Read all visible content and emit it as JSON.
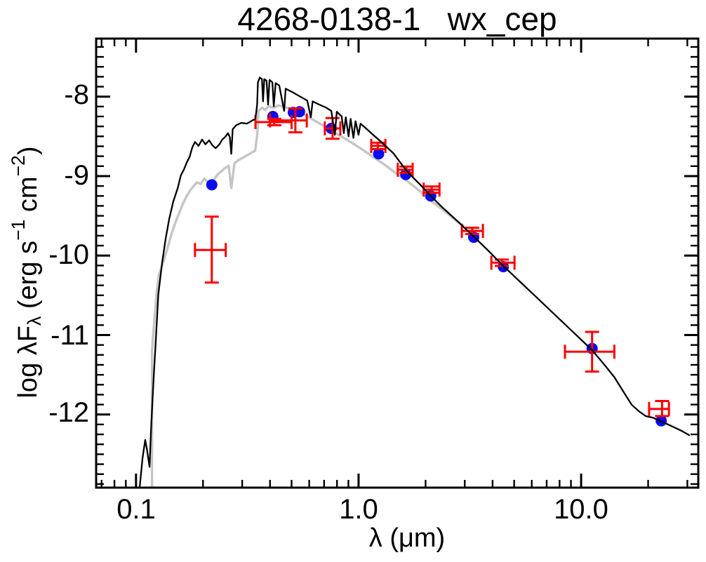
{
  "title": "4268-0138-1   wx_cep",
  "labels": {
    "x": "λ (μm)",
    "y_parts": [
      {
        "t": "log λF"
      },
      {
        "t": "λ"
      },
      {
        "t": " (erg s"
      },
      {
        "t": "−1"
      },
      {
        "t": " cm"
      },
      {
        "t": "−2"
      },
      {
        "t": ")"
      }
    ]
  },
  "colors": {
    "frame": "#000000",
    "black_curve": "#000000",
    "gray_curve": "#c6c6c6",
    "blue_points": "#0a0aee",
    "red_errorbars": "#ff0000"
  },
  "chart_data": {
    "type": "scatter",
    "title": "4268-0138-1   wx_cep",
    "xlabel": "λ (μm)",
    "ylabel": "log λF_λ (erg s^-1 cm^-2)",
    "x_scale": "log",
    "y_scale": "linear",
    "xlim": [
      0.0662,
      33.6
    ],
    "ylim": [
      -12.92,
      -7.27
    ],
    "grid": false,
    "legend": false,
    "x_major_ticks": [
      {
        "value": 0.1,
        "label": "0.1"
      },
      {
        "value": 1.0,
        "label": "1.0"
      },
      {
        "value": 10.0,
        "label": "10.0"
      }
    ],
    "y_major_ticks": [
      {
        "value": -8,
        "label": "-8"
      },
      {
        "value": -9,
        "label": "-9"
      },
      {
        "value": -10,
        "label": "-10"
      },
      {
        "value": -11,
        "label": "-11"
      },
      {
        "value": -12,
        "label": "-12"
      }
    ],
    "y_minor_step": 0.125,
    "series": [
      {
        "name": "model-spectrum-gray",
        "type": "line",
        "color": "#c6c6c6",
        "width": 3.5,
        "points": [
          [
            0.118,
            -12.9
          ],
          [
            0.118,
            -11.2
          ],
          [
            0.121,
            -10.8
          ],
          [
            0.124,
            -10.45
          ],
          [
            0.127,
            -10.24
          ],
          [
            0.133,
            -10.07
          ],
          [
            0.139,
            -9.89
          ],
          [
            0.145,
            -9.71
          ],
          [
            0.151,
            -9.57
          ],
          [
            0.157,
            -9.45
          ],
          [
            0.163,
            -9.34
          ],
          [
            0.169,
            -9.25
          ],
          [
            0.175,
            -9.18
          ],
          [
            0.181,
            -9.13
          ],
          [
            0.188,
            -9.08
          ],
          [
            0.195,
            -9.1
          ],
          [
            0.203,
            -9.03
          ],
          [
            0.21,
            -9.08
          ],
          [
            0.218,
            -9.09
          ],
          [
            0.226,
            -9.03
          ],
          [
            0.234,
            -8.97
          ],
          [
            0.242,
            -8.94
          ],
          [
            0.251,
            -8.9
          ],
          [
            0.261,
            -8.87
          ],
          [
            0.268,
            -9.15
          ],
          [
            0.277,
            -8.84
          ],
          [
            0.288,
            -8.8
          ],
          [
            0.306,
            -8.76
          ],
          [
            0.324,
            -8.72
          ],
          [
            0.343,
            -8.68
          ],
          [
            0.351,
            -8.46
          ],
          [
            0.355,
            -8.18
          ],
          [
            0.369,
            -8.14
          ],
          [
            0.38,
            -8.17
          ],
          [
            0.394,
            -8.12
          ],
          [
            0.414,
            -8.14
          ],
          [
            0.437,
            -8.11
          ],
          [
            0.463,
            -8.13
          ],
          [
            0.49,
            -8.15
          ],
          [
            0.52,
            -8.18
          ],
          [
            0.555,
            -8.21
          ],
          [
            0.597,
            -8.26
          ],
          [
            0.642,
            -8.31
          ],
          [
            0.69,
            -8.36
          ],
          [
            0.742,
            -8.41
          ],
          [
            0.798,
            -8.47
          ],
          [
            0.871,
            -8.53
          ],
          [
            0.957,
            -8.6
          ],
          [
            1.07,
            -8.69
          ],
          [
            1.19,
            -8.78
          ],
          [
            1.33,
            -8.87
          ],
          [
            1.48,
            -8.97
          ],
          [
            1.65,
            -9.06
          ],
          [
            1.87,
            -9.18
          ],
          [
            2.11,
            -9.31
          ],
          [
            2.41,
            -9.43
          ],
          [
            2.74,
            -9.56
          ],
          [
            2.95,
            -9.62
          ]
        ]
      },
      {
        "name": "photometry-model-dots",
        "type": "scatter",
        "color": "#0a0aee",
        "radius": 8,
        "points": [
          [
            0.219,
            -9.11
          ],
          [
            0.412,
            -8.25
          ],
          [
            0.509,
            -8.2
          ],
          [
            0.543,
            -8.19
          ],
          [
            0.753,
            -8.4
          ],
          [
            1.23,
            -8.72
          ],
          [
            1.63,
            -8.98
          ],
          [
            2.11,
            -9.25
          ],
          [
            3.29,
            -9.77
          ],
          [
            4.47,
            -10.14
          ],
          [
            11.2,
            -11.17
          ],
          [
            22.9,
            -12.08
          ]
        ]
      },
      {
        "name": "photometry-observed-errorbars",
        "type": "errorbar",
        "color": "#ff0000",
        "width": 3,
        "cap": 10,
        "points": [
          {
            "x": 0.219,
            "y": -9.93,
            "xlo": 0.184,
            "xhi": 0.253,
            "ylo": -10.34,
            "yhi": -9.51
          },
          {
            "x": 0.418,
            "y": -8.32,
            "xlo": 0.344,
            "xhi": 0.5,
            "ylo": -8.36,
            "yhi": -8.28
          },
          {
            "x": 0.52,
            "y": -8.3,
            "xlo": 0.4,
            "xhi": 0.585,
            "ylo": -8.45,
            "yhi": -8.15
          },
          {
            "x": 0.764,
            "y": -8.4,
            "xlo": 0.705,
            "xhi": 0.828,
            "ylo": -8.53,
            "yhi": -8.27
          },
          {
            "x": 1.22,
            "y": -8.62,
            "xlo": 1.14,
            "xhi": 1.32,
            "ylo": -8.66,
            "yhi": -8.58
          },
          {
            "x": 1.64,
            "y": -8.92,
            "xlo": 1.5,
            "xhi": 1.75,
            "ylo": -8.96,
            "yhi": -8.88
          },
          {
            "x": 2.13,
            "y": -9.17,
            "xlo": 1.96,
            "xhi": 2.31,
            "ylo": -9.21,
            "yhi": -9.13
          },
          {
            "x": 3.24,
            "y": -9.69,
            "xlo": 2.91,
            "xhi": 3.62,
            "ylo": -9.73,
            "yhi": -9.65
          },
          {
            "x": 4.4,
            "y": -10.09,
            "xlo": 3.95,
            "xhi": 5.02,
            "ylo": -10.13,
            "yhi": -10.05
          },
          {
            "x": 11.2,
            "y": -11.21,
            "xlo": 8.46,
            "xhi": 14.1,
            "ylo": -11.46,
            "yhi": -10.96
          },
          {
            "x": 23.1,
            "y": -11.93,
            "xlo": 20.2,
            "xhi": 24.8,
            "ylo": -12.02,
            "yhi": -11.83
          }
        ]
      },
      {
        "name": "model-spectrum-black",
        "type": "line",
        "color": "#000000",
        "width": 2.3,
        "points": [
          [
            0.104,
            -12.9
          ],
          [
            0.107,
            -12.55
          ],
          [
            0.11,
            -12.32
          ],
          [
            0.112,
            -12.44
          ],
          [
            0.115,
            -12.66
          ],
          [
            0.117,
            -12.15
          ],
          [
            0.12,
            -11.55
          ],
          [
            0.123,
            -11.02
          ],
          [
            0.126,
            -10.49
          ],
          [
            0.131,
            -10.09
          ],
          [
            0.136,
            -9.78
          ],
          [
            0.141,
            -9.54
          ],
          [
            0.147,
            -9.32
          ],
          [
            0.154,
            -9.15
          ],
          [
            0.159,
            -8.99
          ],
          [
            0.164,
            -8.92
          ],
          [
            0.169,
            -8.83
          ],
          [
            0.174,
            -8.76
          ],
          [
            0.179,
            -8.64
          ],
          [
            0.184,
            -8.57
          ],
          [
            0.191,
            -8.62
          ],
          [
            0.198,
            -8.54
          ],
          [
            0.205,
            -8.6
          ],
          [
            0.213,
            -8.55
          ],
          [
            0.22,
            -8.61
          ],
          [
            0.228,
            -8.65
          ],
          [
            0.237,
            -8.6
          ],
          [
            0.244,
            -8.54
          ],
          [
            0.251,
            -8.51
          ],
          [
            0.259,
            -8.46
          ],
          [
            0.264,
            -8.51
          ],
          [
            0.268,
            -8.72
          ],
          [
            0.272,
            -8.41
          ],
          [
            0.282,
            -8.36
          ],
          [
            0.297,
            -8.33
          ],
          [
            0.315,
            -8.34
          ],
          [
            0.333,
            -8.3
          ],
          [
            0.344,
            -8.28
          ],
          [
            0.35,
            -8.1
          ],
          [
            0.353,
            -7.82
          ],
          [
            0.36,
            -7.76
          ],
          [
            0.368,
            -7.78
          ],
          [
            0.372,
            -8.06
          ],
          [
            0.377,
            -7.78
          ],
          [
            0.386,
            -7.8
          ],
          [
            0.392,
            -8.1
          ],
          [
            0.398,
            -7.79
          ],
          [
            0.41,
            -7.82
          ],
          [
            0.416,
            -8.12
          ],
          [
            0.424,
            -7.83
          ],
          [
            0.44,
            -7.86
          ],
          [
            0.463,
            -8.18
          ],
          [
            0.47,
            -7.9
          ],
          [
            0.509,
            -7.95
          ],
          [
            0.547,
            -8.0
          ],
          [
            0.588,
            -8.05
          ],
          [
            0.61,
            -8.26
          ],
          [
            0.622,
            -8.06
          ],
          [
            0.665,
            -8.1
          ],
          [
            0.716,
            -8.14
          ],
          [
            0.754,
            -8.18
          ],
          [
            0.782,
            -8.48
          ],
          [
            0.798,
            -8.19
          ],
          [
            0.84,
            -8.25
          ],
          [
            0.858,
            -8.46
          ],
          [
            0.876,
            -8.26
          ],
          [
            0.902,
            -8.5
          ],
          [
            0.921,
            -8.28
          ],
          [
            0.948,
            -8.52
          ],
          [
            0.969,
            -8.31
          ],
          [
            1.0,
            -8.48
          ],
          [
            1.02,
            -8.34
          ],
          [
            1.07,
            -8.39
          ],
          [
            1.15,
            -8.47
          ],
          [
            1.24,
            -8.55
          ],
          [
            1.43,
            -8.71
          ],
          [
            1.65,
            -8.94
          ],
          [
            1.91,
            -9.12
          ],
          [
            2.11,
            -9.25
          ],
          [
            2.37,
            -9.39
          ],
          [
            2.74,
            -9.55
          ],
          [
            3.29,
            -9.76
          ],
          [
            3.8,
            -9.93
          ],
          [
            4.47,
            -10.13
          ],
          [
            5.27,
            -10.32
          ],
          [
            6.33,
            -10.53
          ],
          [
            7.59,
            -10.74
          ],
          [
            9.1,
            -10.95
          ],
          [
            11.2,
            -11.19
          ],
          [
            12.6,
            -11.36
          ],
          [
            14.1,
            -11.53
          ],
          [
            15.7,
            -11.74
          ],
          [
            16.9,
            -11.88
          ],
          [
            18.2,
            -11.96
          ],
          [
            19.5,
            -12.02
          ],
          [
            21.0,
            -12.04
          ],
          [
            22.6,
            -12.08
          ],
          [
            25.2,
            -12.14
          ],
          [
            28.0,
            -12.2
          ],
          [
            30.6,
            -12.26
          ]
        ]
      }
    ]
  }
}
